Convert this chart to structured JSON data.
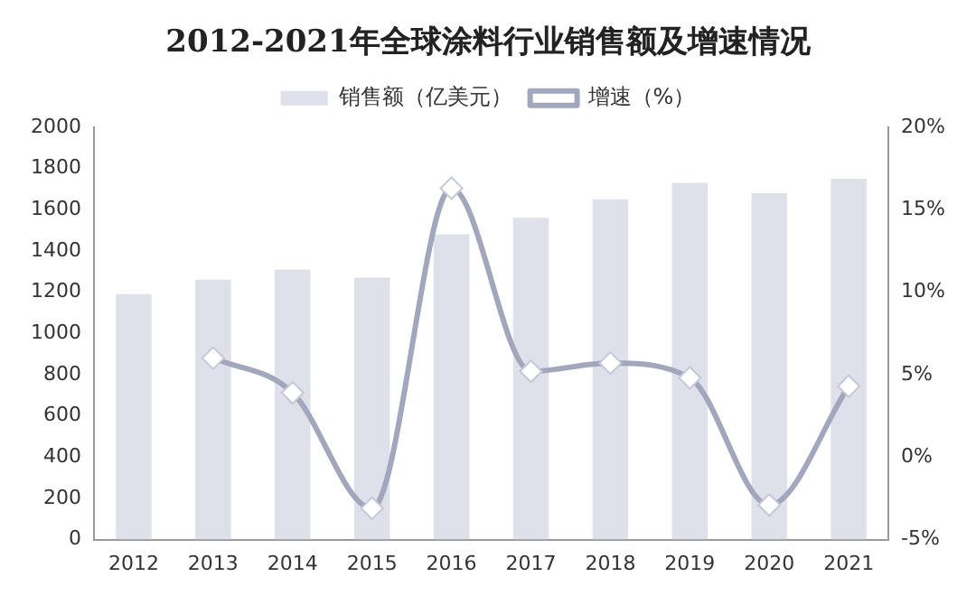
{
  "chart_data": {
    "type": "bar",
    "title": "2012-2021年全球涂料行业销售额及增速情况",
    "categories": [
      "2012",
      "2013",
      "2014",
      "2015",
      "2016",
      "2017",
      "2018",
      "2019",
      "2020",
      "2021"
    ],
    "series": [
      {
        "name": "销售额（亿美元）",
        "color": "#dfe1ea",
        "values": [
          1190,
          1260,
          1310,
          1270,
          1480,
          1560,
          1650,
          1730,
          1680,
          1750
        ]
      },
      {
        "name": "增速（%）",
        "type": "line",
        "axis": "y2",
        "color": "#a3a7bd",
        "marker": "diamond",
        "values": [
          null,
          6.0,
          3.9,
          -3.1,
          16.3,
          5.2,
          5.7,
          4.8,
          -2.9,
          4.3
        ]
      }
    ],
    "ylim": [
      0,
      2000
    ],
    "yticks": [
      0,
      200,
      400,
      600,
      800,
      1000,
      1200,
      1400,
      1600,
      1800,
      2000
    ],
    "y2lim": [
      -5,
      20
    ],
    "y2ticks": [
      {
        "value": -5,
        "label": "-5%"
      },
      {
        "value": 0,
        "label": "0%"
      },
      {
        "value": 5,
        "label": "5%"
      },
      {
        "value": 10,
        "label": "10%"
      },
      {
        "value": 15,
        "label": "15%"
      },
      {
        "value": 20,
        "label": "20%"
      }
    ],
    "legend": "top",
    "grid": false
  }
}
